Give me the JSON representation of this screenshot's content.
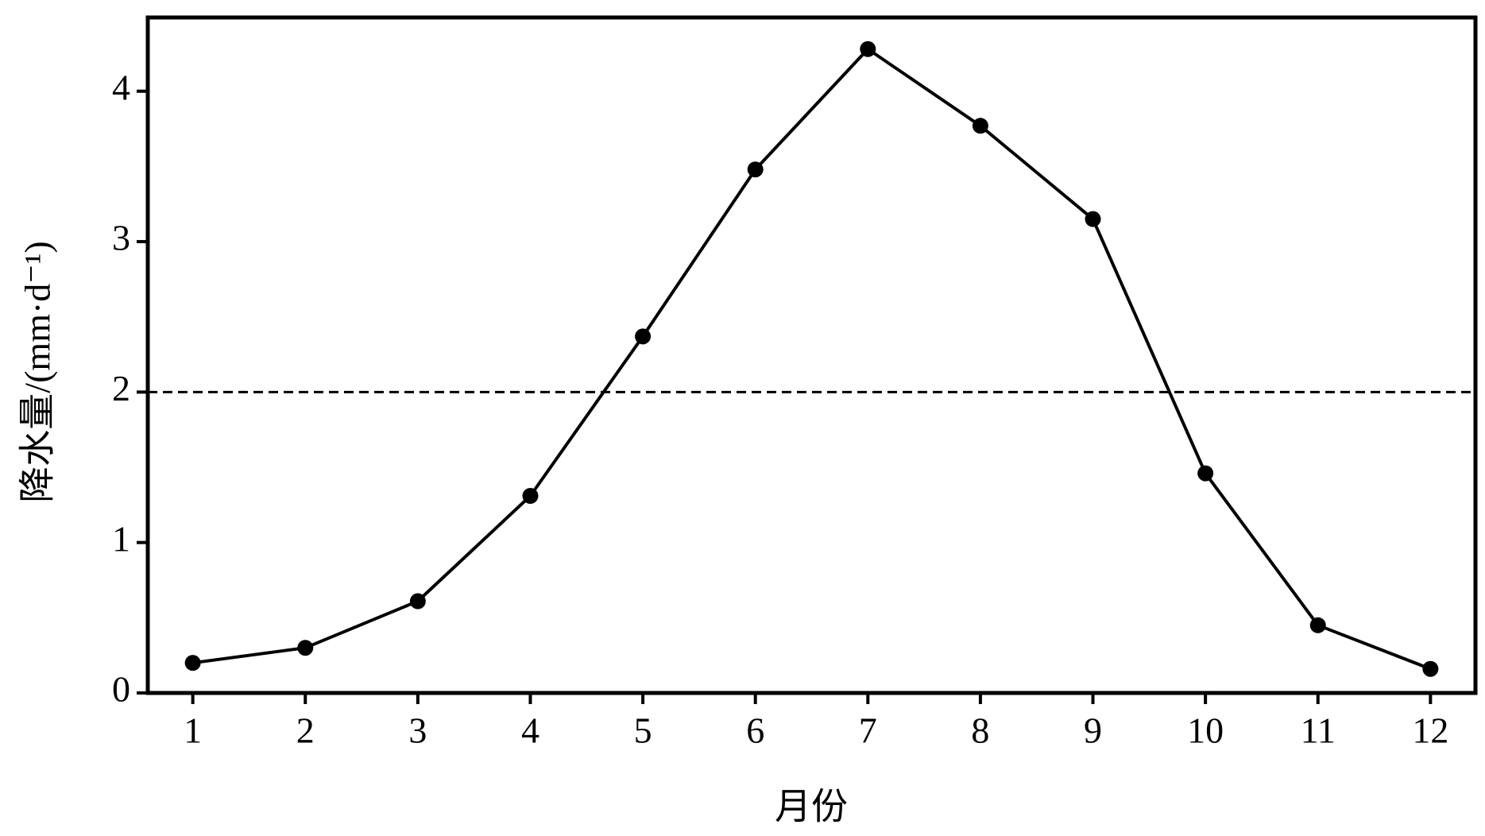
{
  "chart_data": {
    "type": "line",
    "x_label": "月份",
    "y_label": "降水量/(mm·d⁻¹)",
    "x": [
      1,
      2,
      3,
      4,
      5,
      6,
      7,
      8,
      9,
      10,
      11,
      12
    ],
    "series": [
      {
        "color": "#000000",
        "values": [
          0.2,
          0.3,
          0.61,
          1.31,
          2.37,
          3.48,
          4.28,
          3.77,
          3.15,
          1.46,
          0.45,
          0.16
        ]
      }
    ],
    "xlim": [
      0.6,
      12.4
    ],
    "xticks": [
      1,
      2,
      3,
      4,
      5,
      6,
      7,
      8,
      9,
      10,
      11,
      12
    ],
    "ylim": [
      0,
      4.49
    ],
    "yticks": [
      0,
      1,
      2,
      3,
      4
    ],
    "reference_line": 2
  }
}
